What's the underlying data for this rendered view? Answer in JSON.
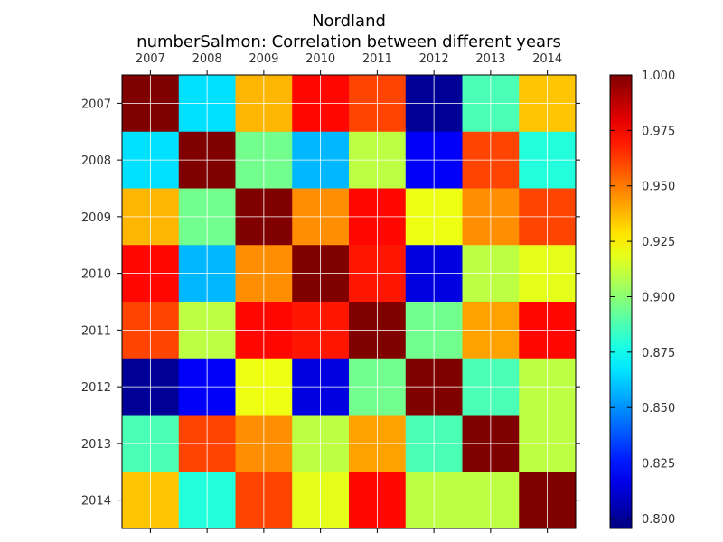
{
  "chart_data": {
    "type": "heatmap",
    "title": "Nordland",
    "subtitle": "numberSalmon: Correlation between different years",
    "xlabels": [
      "2007",
      "2008",
      "2009",
      "2010",
      "2011",
      "2012",
      "2013",
      "2014"
    ],
    "ylabels": [
      "2007",
      "2008",
      "2009",
      "2010",
      "2011",
      "2012",
      "2013",
      "2014"
    ],
    "values": [
      [
        1.0,
        0.866,
        0.938,
        0.973,
        0.961,
        0.8,
        0.887,
        0.935
      ],
      [
        0.866,
        1.0,
        0.895,
        0.858,
        0.91,
        0.82,
        0.961,
        0.879
      ],
      [
        0.938,
        0.895,
        1.0,
        0.946,
        0.973,
        0.92,
        0.946,
        0.961
      ],
      [
        0.973,
        0.858,
        0.946,
        1.0,
        0.97,
        0.815,
        0.91,
        0.918
      ],
      [
        0.961,
        0.91,
        0.973,
        0.97,
        1.0,
        0.895,
        0.942,
        0.973
      ],
      [
        0.8,
        0.82,
        0.92,
        0.815,
        0.895,
        1.0,
        0.887,
        0.91
      ],
      [
        0.887,
        0.961,
        0.946,
        0.91,
        0.942,
        0.887,
        1.0,
        0.91
      ],
      [
        0.935,
        0.879,
        0.961,
        0.918,
        0.973,
        0.91,
        0.91,
        1.0
      ]
    ],
    "colormap": "jet",
    "vmin": 0.7955,
    "vmax": 1.0,
    "colorbar_ticks": [
      "0.800",
      "0.825",
      "0.850",
      "0.875",
      "0.900",
      "0.925",
      "0.950",
      "0.975",
      "1.000"
    ],
    "colorbar_tick_values": [
      0.8,
      0.825,
      0.85,
      0.875,
      0.9,
      0.925,
      0.95,
      0.975,
      1.0
    ],
    "grid": true,
    "xaxis_position": "top"
  }
}
